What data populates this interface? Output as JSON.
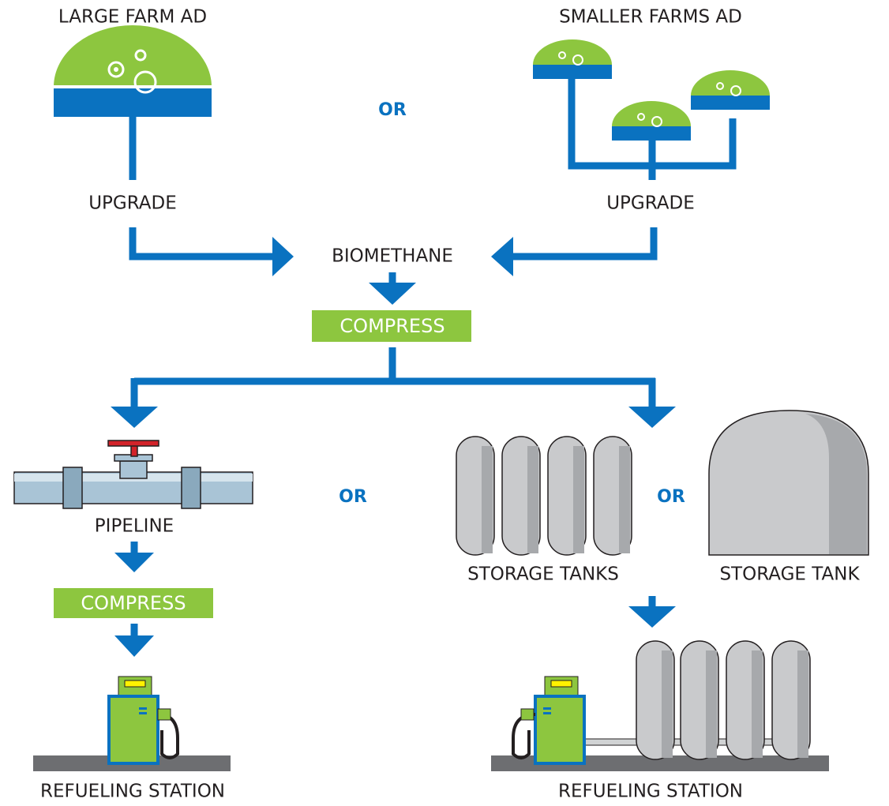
{
  "sources": {
    "large": "LARGE FARM AD",
    "small": "SMALLER FARMS AD",
    "or": "OR"
  },
  "upgrade": {
    "left": "UPGRADE",
    "right": "UPGRADE"
  },
  "biomethane": "BIOMETHANE",
  "compress": {
    "main": "COMPRESS",
    "pipeline": "COMPRESS"
  },
  "distribution": {
    "pipeline": "PIPELINE",
    "or_left": "OR",
    "storage_tanks": "STORAGE TANKS",
    "or_right": "OR",
    "storage_tank": "STORAGE TANK"
  },
  "stations": {
    "left": "REFUELING STATION",
    "right": "REFUELING STATION"
  }
}
